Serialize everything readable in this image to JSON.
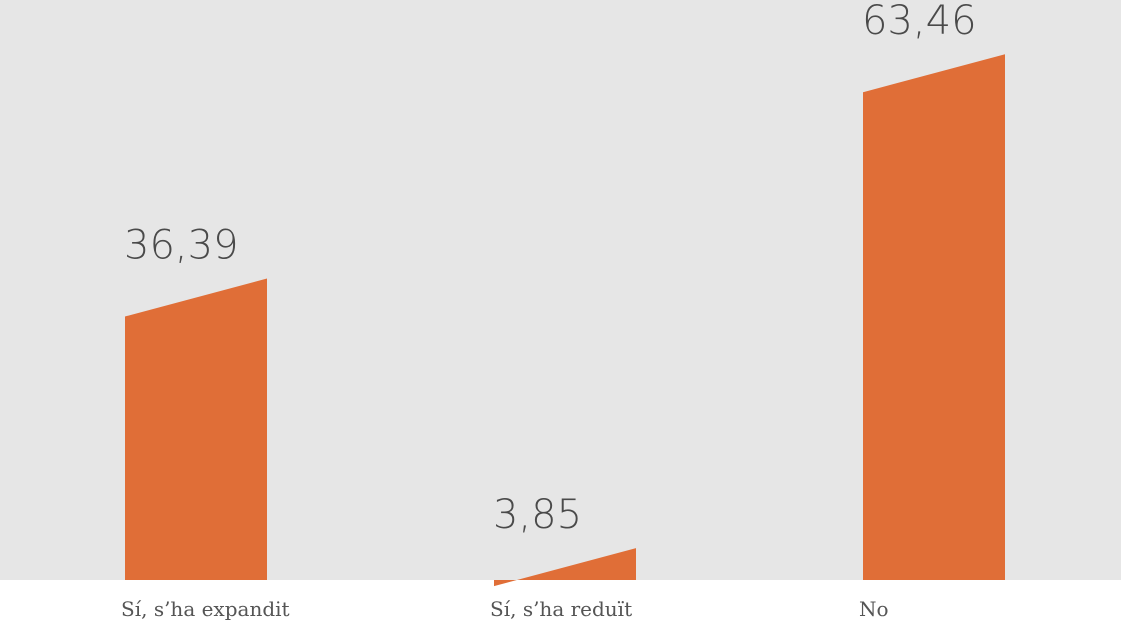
{
  "chart_data": {
    "type": "bar",
    "categories": [
      "Sí, s’ha expandit",
      "Sí, s’ha reduït",
      "No"
    ],
    "values": [
      36.39,
      3.85,
      63.46
    ],
    "value_labels": [
      "36,39",
      "3,85",
      "63,46"
    ],
    "title": "",
    "xlabel": "",
    "ylabel": "",
    "ylim": [
      0,
      70
    ],
    "grid": false,
    "legend": "none",
    "colors": {
      "bar": "#e06e37",
      "plot_background": "#e6e6e6",
      "page_background": "#ffffff",
      "value_text": "#4a4a4a",
      "category_text": "#555555"
    }
  }
}
